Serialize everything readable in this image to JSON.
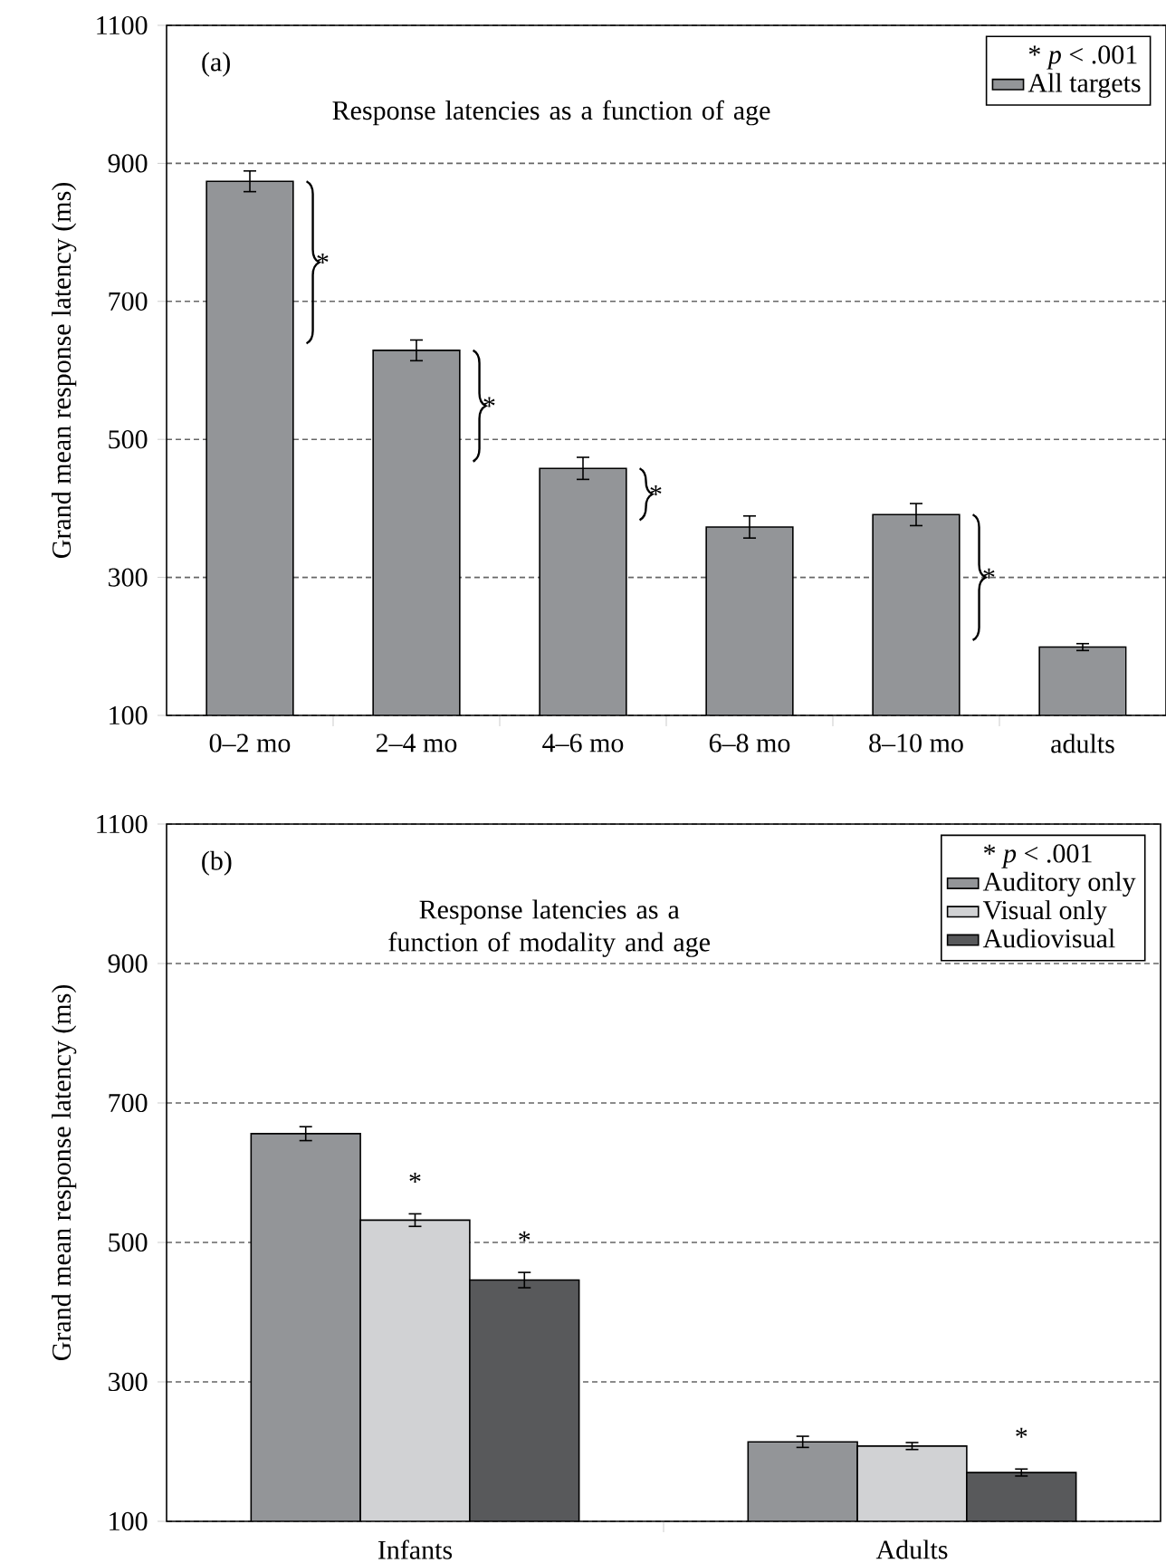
{
  "chart_data": [
    {
      "type": "bar",
      "title": "Response latencies as a function of age",
      "ylabel": "Grand mean response latency (ms)",
      "categories": [
        "0–2 mo",
        "2–4 mo",
        "4–6 mo",
        "6–8 mo",
        "8–10 mo",
        "adults"
      ],
      "series": [
        {
          "name": "All targets",
          "color": "#939598",
          "values": [
            874,
            629,
            458,
            373,
            391,
            199
          ],
          "errors": [
            15,
            15,
            16,
            16,
            16,
            5
          ]
        }
      ],
      "ylim": [
        100,
        1100
      ],
      "yticks": [
        100,
        300,
        500,
        700,
        900,
        1100
      ],
      "grid": "y",
      "legend": "top right",
      "annotations": [
        "(a)",
        "* *p* < .001",
        "*",
        "*",
        "*",
        "*"
      ]
    },
    {
      "type": "bar",
      "title": "Response latencies as a function of modality and age",
      "ylabel": "Grand mean response latency (ms)",
      "categories": [
        "Infants",
        "Adults"
      ],
      "series": [
        {
          "name": "Auditory only",
          "color": "#939598",
          "values": [
            656,
            214
          ],
          "errors": [
            10,
            8
          ]
        },
        {
          "name": "Visual only",
          "color": "#d1d2d4",
          "values": [
            532,
            208
          ],
          "errors": [
            9,
            5
          ]
        },
        {
          "name": "Audiovisual",
          "color": "#58595b",
          "values": [
            446,
            170
          ],
          "errors": [
            11,
            5
          ]
        }
      ],
      "ylim": [
        100,
        1100
      ],
      "yticks": [
        100,
        300,
        500,
        700,
        900,
        1100
      ],
      "grid": "y",
      "legend": "top right",
      "annotations": [
        "(b)",
        "* *p* < .001",
        "*",
        "*",
        "*"
      ]
    }
  ]
}
